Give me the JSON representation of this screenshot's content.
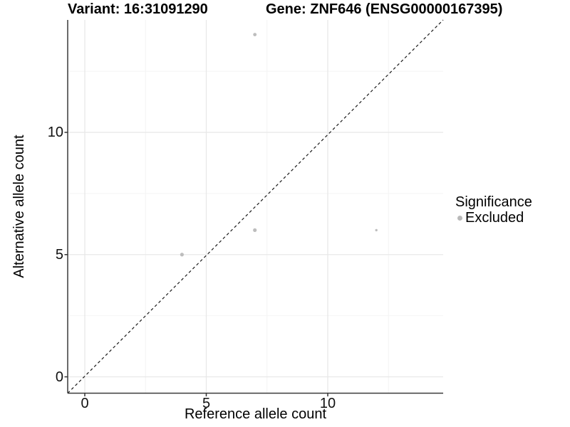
{
  "titles": {
    "variant": "Variant: 16:31091290",
    "gene": "Gene: ZNF646 (ENSG00000167395)"
  },
  "legend": {
    "title": "Significance",
    "items": [
      {
        "label": "Excluded",
        "color": "#b9b9b9"
      }
    ]
  },
  "colors": {
    "point": "#bdbdbd",
    "grid_major": "#e8e8e8",
    "grid_minor": "#f4f4f4",
    "axis_line": "#3a3a3a",
    "tick_mark": "#333333",
    "identity_line": "#1a1a1a",
    "text": "#000000",
    "background": "#ffffff"
  },
  "chart_data": {
    "type": "scatter",
    "title": "Variant: 16:31091290 / Gene: ZNF646 (ENSG00000167395)",
    "xlabel": "Reference allele count",
    "ylabel": "Alternative allele count",
    "xlim": [
      -0.7,
      14.75
    ],
    "ylim": [
      -0.67,
      14.6
    ],
    "x_ticks": [
      0,
      5,
      10
    ],
    "y_ticks": [
      0,
      5,
      10
    ],
    "x_minor_ticks": [
      2.5,
      7.5,
      12.5
    ],
    "y_minor_ticks": [
      2.5,
      7.5,
      12.5
    ],
    "grid": "major+minor",
    "legend_position": "right",
    "identity_line": {
      "style": "dashed",
      "equation": "y = x"
    },
    "series": [
      {
        "name": "Excluded",
        "color": "#bdbdbd",
        "points": [
          {
            "x": 7,
            "y": 14,
            "r": 2.4
          },
          {
            "x": 4,
            "y": 5,
            "r": 2.6
          },
          {
            "x": 7,
            "y": 6,
            "r": 2.6
          },
          {
            "x": 12,
            "y": 6,
            "r": 1.7
          }
        ]
      }
    ]
  }
}
